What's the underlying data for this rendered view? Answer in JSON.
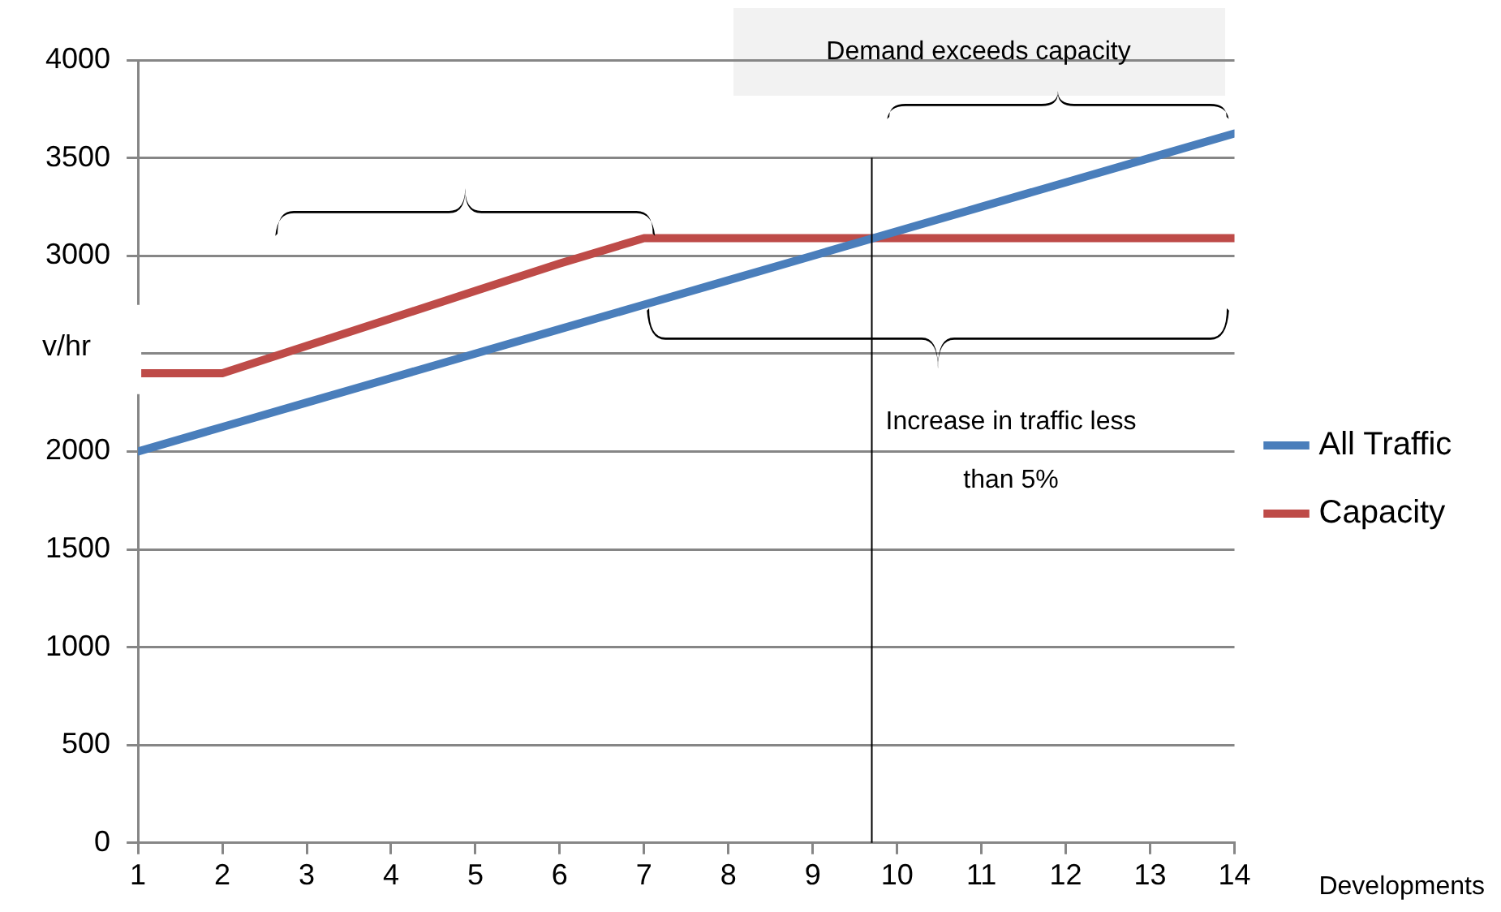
{
  "chart_data": {
    "type": "line",
    "xlabel": "Developments",
    "ylabel": "v/hr",
    "x": [
      1,
      2,
      3,
      4,
      5,
      6,
      7,
      8,
      9,
      10,
      11,
      12,
      13,
      14
    ],
    "xlim": [
      1,
      14
    ],
    "xticks": [
      1,
      2,
      3,
      4,
      5,
      6,
      7,
      8,
      9,
      10,
      11,
      12,
      13,
      14
    ],
    "ylim": [
      0,
      4000
    ],
    "yticks": [
      0,
      500,
      1000,
      1500,
      2000,
      {
        "value": 2500,
        "label": null
      },
      3000,
      3500,
      4000
    ],
    "series": [
      {
        "name": "All Traffic",
        "color": "#4a7ebb",
        "values": [
          2000,
          2125,
          2250,
          2375,
          2500,
          2625,
          2750,
          2875,
          3000,
          3125,
          3250,
          3375,
          3500,
          3625
        ]
      },
      {
        "name": "Capacity",
        "color": "#be4b48",
        "values": [
          2400,
          2400,
          2540,
          2680,
          2820,
          2960,
          3090,
          3090,
          3090,
          3090,
          3090,
          3090,
          3090,
          3090
        ]
      }
    ],
    "ref_lines": [
      {
        "axis": "x",
        "value": 9.7,
        "color": "#000000"
      }
    ],
    "annotations": [
      "Demand exceeds capacity",
      "Increase in traffic less than 5%"
    ],
    "grid": "y",
    "legend": "right",
    "marker": "none",
    "line_style": "solid"
  }
}
